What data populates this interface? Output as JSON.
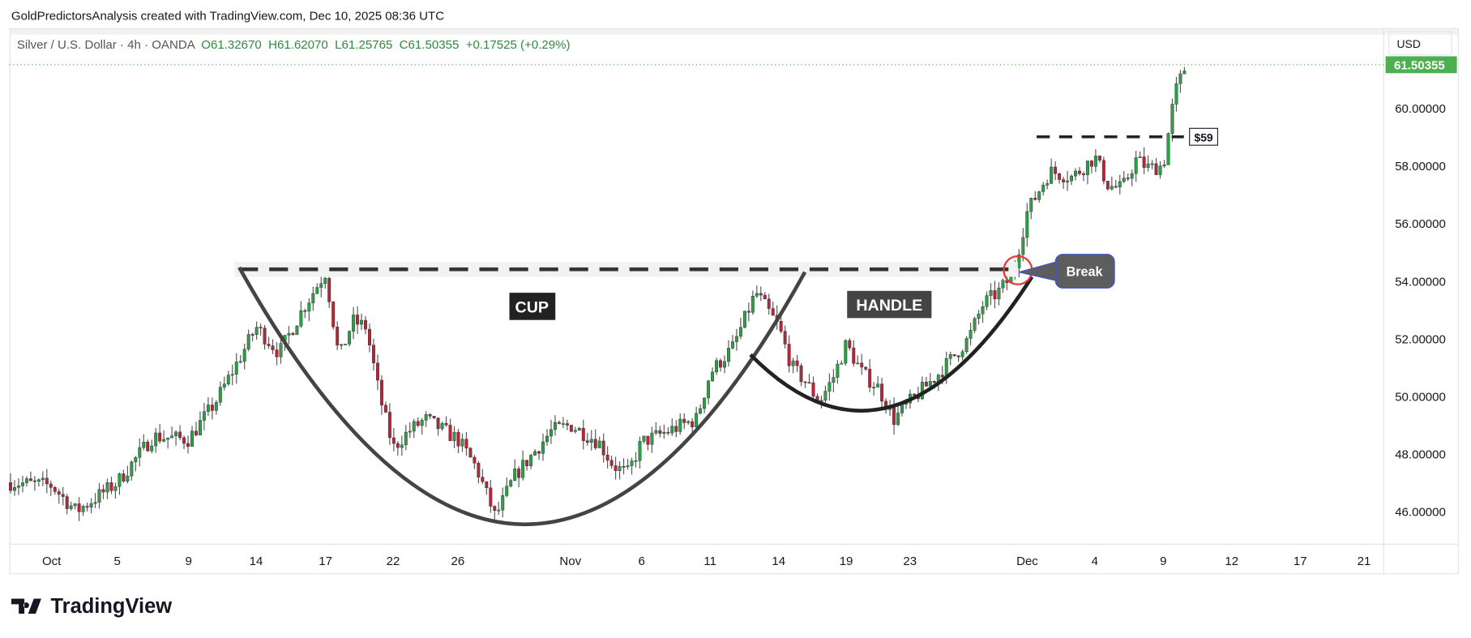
{
  "credit": "GoldPredictorsAnalysis created with TradingView.com, Dec 10, 2025 08:36 UTC",
  "legend": {
    "symbol": "Silver / U.S. Dollar · 4h · OANDA",
    "open": "O61.32670",
    "high": "H61.62070",
    "low": "L61.25765",
    "close": "C61.50355",
    "change": "+0.17525 (+0.29%)"
  },
  "currency": "USD",
  "last_price": "61.50355",
  "brand": "TradingView",
  "colors": {
    "up": "#2e9e4a",
    "down": "#b2283a",
    "last": "#4caf50",
    "circle": "#e53935"
  },
  "chart_data": {
    "type": "candlestick",
    "title": "Silver / U.S. Dollar · 4h · OANDA",
    "ylim": [
      45,
      62
    ],
    "y_ticks": [
      "46.00000",
      "48.00000",
      "50.00000",
      "52.00000",
      "54.00000",
      "56.00000",
      "58.00000",
      "60.00000"
    ],
    "y_tick_values": [
      46,
      48,
      50,
      52,
      54,
      56,
      58,
      60
    ],
    "x_ticks": [
      {
        "label": "Oct",
        "day": 1
      },
      {
        "label": "5",
        "day": 5
      },
      {
        "label": "9",
        "day": 9
      },
      {
        "label": "14",
        "day": 14
      },
      {
        "label": "17",
        "day": 17
      },
      {
        "label": "22",
        "day": 22
      },
      {
        "label": "26",
        "day": 26
      },
      {
        "label": "Nov",
        "day": 32
      },
      {
        "label": "6",
        "day": 37
      },
      {
        "label": "11",
        "day": 42
      },
      {
        "label": "14",
        "day": 45
      },
      {
        "label": "19",
        "day": 50
      },
      {
        "label": "23",
        "day": 54
      },
      {
        "label": "Dec",
        "day": 62
      },
      {
        "label": "4",
        "day": 65
      },
      {
        "label": "9",
        "day": 70
      },
      {
        "label": "12",
        "day": 73
      },
      {
        "label": "17",
        "day": 78
      },
      {
        "label": "21",
        "day": 82
      }
    ],
    "price_path": [
      [
        -1.5,
        47
      ],
      [
        1,
        46.9
      ],
      [
        2.5,
        46.0
      ],
      [
        5,
        47.0
      ],
      [
        7,
        48.6
      ],
      [
        9,
        48.5
      ],
      [
        11,
        49.8
      ],
      [
        13,
        51.5
      ],
      [
        14,
        52.4
      ],
      [
        15,
        51.5
      ],
      [
        16,
        53.0
      ],
      [
        17,
        54.3
      ],
      [
        18,
        51.3
      ],
      [
        19,
        52.6
      ],
      [
        20,
        52.4
      ],
      [
        21,
        50.0
      ],
      [
        22,
        48.2
      ],
      [
        23,
        48.8
      ],
      [
        24,
        49.2
      ],
      [
        26,
        48.5
      ],
      [
        27,
        47.5
      ],
      [
        28,
        45.8
      ],
      [
        29,
        47.2
      ],
      [
        30,
        48.0
      ],
      [
        31,
        48.8
      ],
      [
        32,
        49.0
      ],
      [
        34,
        48.4
      ],
      [
        35,
        47.6
      ],
      [
        36,
        47.3
      ],
      [
        37,
        48.4
      ],
      [
        39,
        48.8
      ],
      [
        41,
        49.2
      ],
      [
        42,
        50.8
      ],
      [
        43,
        51.7
      ],
      [
        44,
        53.6
      ],
      [
        45,
        52.4
      ],
      [
        46,
        51.0
      ],
      [
        47,
        50.5
      ],
      [
        48,
        49.8
      ],
      [
        49,
        50.6
      ],
      [
        50,
        51.8
      ],
      [
        51,
        50.8
      ],
      [
        52,
        50.3
      ],
      [
        53,
        49.2
      ],
      [
        54,
        49.8
      ],
      [
        56,
        50.8
      ],
      [
        58,
        52.0
      ],
      [
        59,
        53.2
      ],
      [
        60,
        53.6
      ],
      [
        61,
        54.2
      ],
      [
        62,
        56.4
      ],
      [
        63,
        57.8
      ],
      [
        64,
        57.6
      ],
      [
        65,
        58.3
      ],
      [
        66,
        57.3
      ],
      [
        67,
        57.2
      ],
      [
        68,
        58.2
      ],
      [
        69,
        57.9
      ],
      [
        70,
        58.0
      ],
      [
        70.5,
        60.5
      ],
      [
        71,
        61.5
      ]
    ],
    "annotations": {
      "resistance_level": 54.4,
      "breakout_level_label": "$59",
      "breakout_level": 59,
      "cup_label": "CUP",
      "handle_label": "HANDLE",
      "break_label": "Break"
    }
  }
}
